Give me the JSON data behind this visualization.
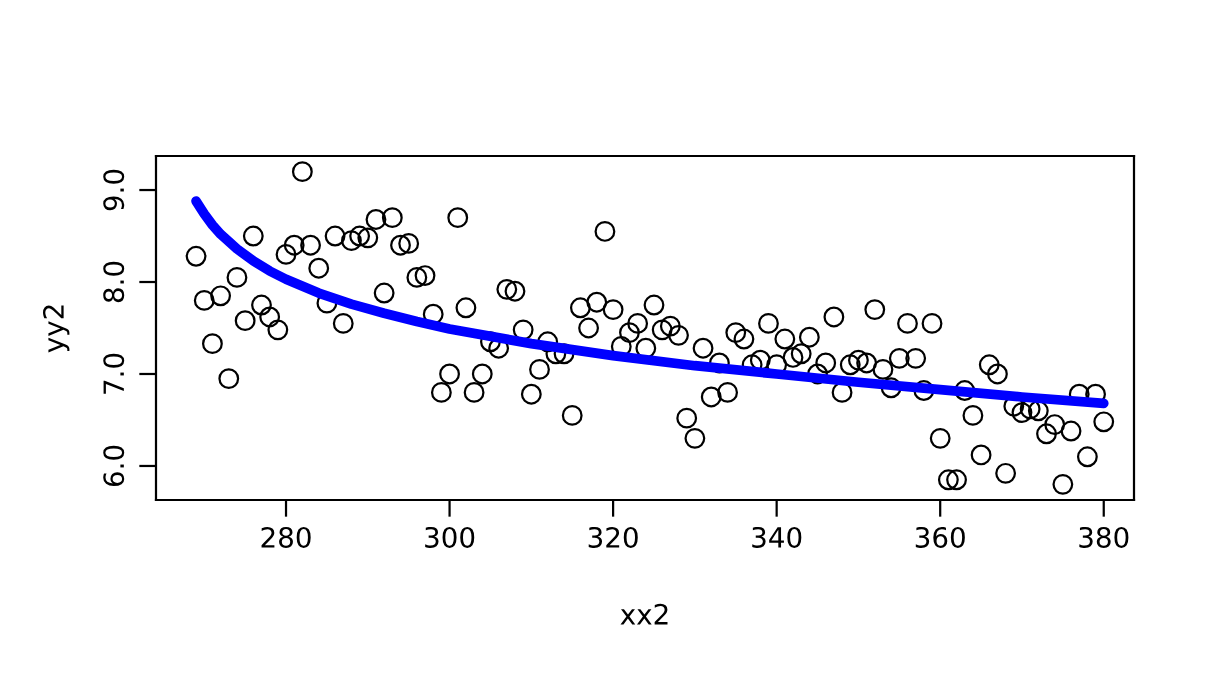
{
  "chart_data": {
    "type": "scatter",
    "xlabel": "xx2",
    "ylabel": "yy2",
    "xlim": [
      264.1,
      383.7
    ],
    "ylim": [
      5.63,
      9.37
    ],
    "xticks": [
      280,
      300,
      320,
      340,
      360,
      380
    ],
    "yticks": [
      {
        "value": 6,
        "label": "6.0"
      },
      {
        "value": 7,
        "label": "7.0"
      },
      {
        "value": 8,
        "label": "8.0"
      },
      {
        "value": 9,
        "label": "9.0"
      }
    ],
    "grid": false,
    "legend": false,
    "series": [
      {
        "color": "#000000",
        "marker": "circle",
        "x": [
          269,
          270,
          271,
          272,
          273,
          274,
          275,
          276,
          277,
          278,
          279,
          280,
          281,
          282,
          283,
          284,
          285,
          286,
          287,
          288,
          289,
          290,
          291,
          292,
          293,
          294,
          295,
          296,
          297,
          298,
          299,
          300,
          301,
          302,
          303,
          304,
          305,
          306,
          307,
          308,
          309,
          310,
          311,
          312,
          313,
          314,
          315,
          316,
          317,
          318,
          319,
          320,
          321,
          322,
          323,
          324,
          325,
          326,
          327,
          328,
          329,
          330,
          331,
          332,
          333,
          334,
          335,
          336,
          337,
          338,
          339,
          340,
          341,
          342,
          343,
          344,
          345,
          346,
          347,
          348,
          349,
          350,
          351,
          352,
          353,
          354,
          355,
          356,
          357,
          358,
          359,
          360,
          361,
          362,
          363,
          364,
          365,
          366,
          367,
          368,
          369,
          370,
          371,
          372,
          373,
          374,
          375,
          376,
          377,
          378,
          379,
          380
        ],
        "values": [
          8.28,
          7.8,
          7.33,
          7.85,
          6.95,
          8.05,
          7.58,
          8.5,
          7.75,
          7.62,
          7.48,
          8.3,
          8.4,
          9.2,
          8.4,
          8.15,
          7.77,
          8.5,
          7.55,
          8.45,
          8.5,
          8.48,
          8.68,
          7.88,
          8.7,
          8.4,
          8.42,
          8.05,
          8.07,
          7.65,
          6.8,
          7.0,
          8.7,
          7.72,
          6.8,
          7.0,
          7.35,
          7.28,
          7.92,
          7.9,
          7.48,
          6.78,
          7.05,
          7.35,
          7.22,
          7.22,
          6.55,
          7.72,
          7.5,
          7.78,
          8.55,
          7.7,
          7.3,
          7.45,
          7.55,
          7.28,
          7.75,
          7.48,
          7.52,
          7.42,
          6.52,
          6.3,
          7.28,
          6.75,
          7.12,
          6.8,
          7.45,
          7.38,
          7.1,
          7.15,
          7.55,
          7.1,
          7.38,
          7.18,
          7.22,
          7.4,
          7.0,
          7.12,
          7.62,
          6.8,
          7.1,
          7.15,
          7.12,
          7.7,
          7.05,
          6.85,
          7.17,
          7.55,
          7.17,
          6.82,
          7.55,
          6.3,
          5.85,
          5.85,
          6.82,
          6.55,
          6.12,
          7.1,
          7.0,
          5.92,
          6.65,
          6.58,
          6.62,
          6.6,
          6.35,
          6.45,
          5.8,
          6.38,
          6.78,
          6.1,
          6.78,
          6.48
        ]
      },
      {
        "type": "line",
        "color": "#0000ff",
        "marker": "none",
        "line_style": "solid",
        "x": [
          269,
          270,
          271,
          272,
          274,
          276,
          278,
          280,
          284,
          288,
          292,
          296,
          300,
          310,
          320,
          330,
          340,
          350,
          360,
          370,
          380
        ],
        "values": [
          8.88,
          8.74,
          8.62,
          8.52,
          8.36,
          8.23,
          8.12,
          8.03,
          7.88,
          7.76,
          7.66,
          7.57,
          7.49,
          7.33,
          7.2,
          7.09,
          7.0,
          6.91,
          6.83,
          6.75,
          6.68
        ]
      }
    ]
  }
}
